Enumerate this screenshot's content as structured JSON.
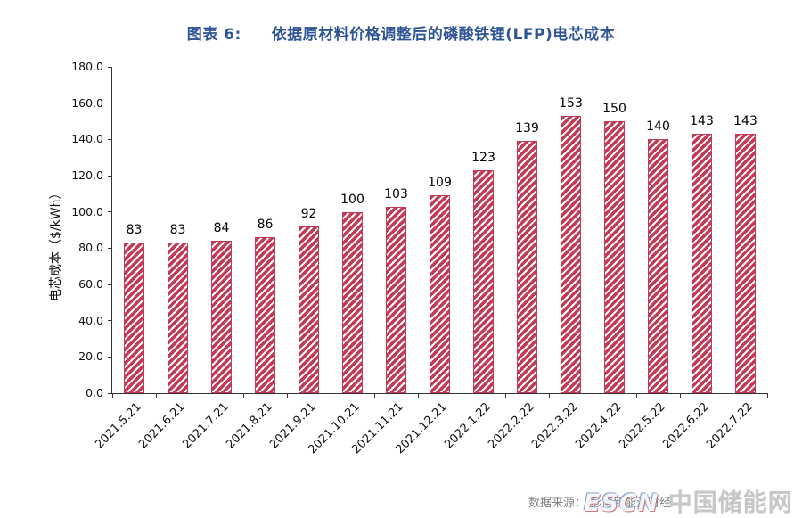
{
  "header": {
    "title_prefix": "图表 6:",
    "title_text": "依据原材料价格调整后的磷酸铁锂(LFP)电芯成本"
  },
  "chart_data": {
    "type": "bar",
    "title": "图表 6: 依据原材料价格调整后的磷酸铁锂(LFP)电芯成本",
    "categories": [
      "2021.5.21",
      "2021.6.21",
      "2021.7.21",
      "2021.8.21",
      "2021.9.21",
      "2021.10.21",
      "2021.11.21",
      "2021.12.21",
      "2022.1.22",
      "2022.2.22",
      "2022.3.22",
      "2022.4.22",
      "2022.5.22",
      "2022.6.22",
      "2022.7.22"
    ],
    "values": [
      83,
      83,
      84,
      86,
      92,
      100,
      103,
      109,
      123,
      139,
      153,
      150,
      140,
      143,
      143
    ],
    "xlabel": "",
    "ylabel": "电芯成本（$/kWh）",
    "ylim": [
      0,
      180
    ],
    "ytick_step": 20,
    "ytick_decimals": 1,
    "grid": false,
    "legend": "none",
    "bar_color": "#c23a55",
    "bar_hatch": "diagonal-stripes"
  },
  "footer": {
    "source_label": "数据来源：",
    "source_value": "彭博新能源财经",
    "watermark_en": "ESCN",
    "watermark_cn": "中国储能网"
  }
}
